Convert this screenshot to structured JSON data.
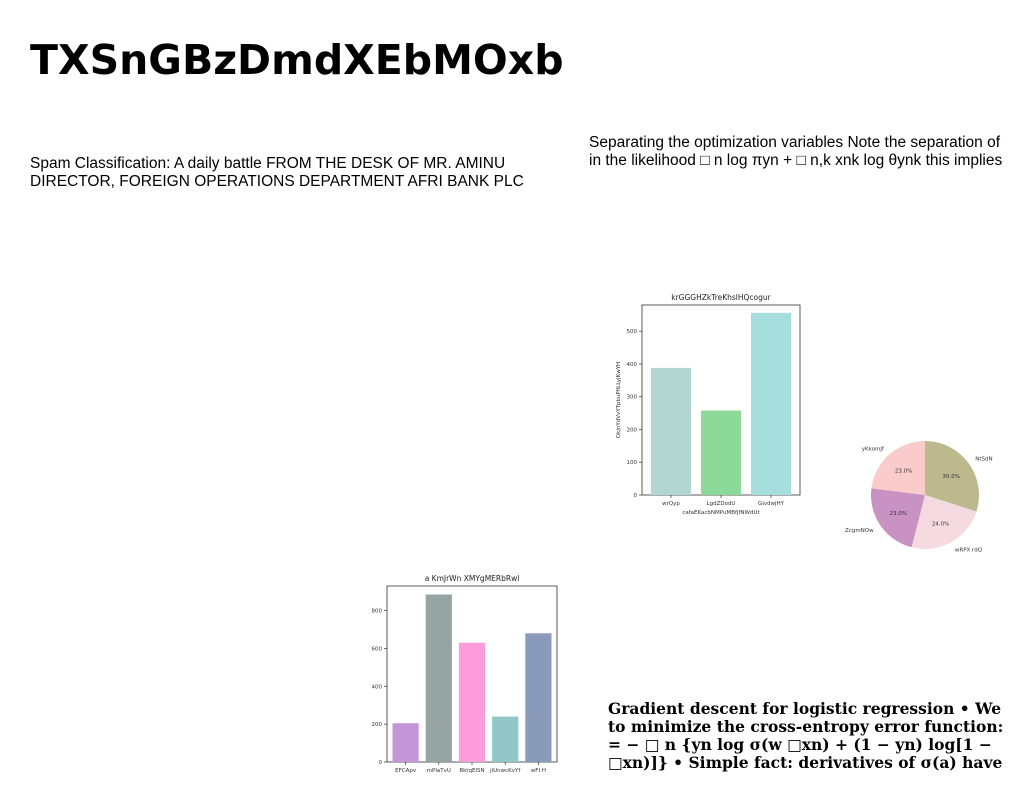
{
  "title": "TXSnGBzDmdXEbMOxb",
  "left_paragraph": {
    "lines": [
      "Spam Classification: A daily battle FROM THE DESK OF MR. AMINU",
      "DIRECTOR, FOREIGN OPERATIONS DEPARTMENT AFRI BANK PLC"
    ]
  },
  "right_paragraph": {
    "lines": [
      "Separating the optimization variables Note the separation of",
      "in the likelihood □ n log πyn + □ n,k xnk log θynk this implies"
    ]
  },
  "bottom_paragraph": {
    "lines": [
      "Gradient descent for logistic regression • We",
      "to minimize the cross-entropy error function:",
      "= − □ n {yn log σ(w □xn) + (1 − yn) log[1 −",
      "□xn)]} • Simple fact: derivatives of σ(a) have"
    ]
  },
  "chart_data": [
    {
      "type": "bar",
      "title": "krGGGHZkTreKhslHQcogur",
      "xlabel": "cafaEKacbNMPuMBfjfNWdUt",
      "ylabel": "OkjnYdVvYTpbuPfiLLyjKwYH",
      "categories": [
        "wrQyp",
        "LgdZDodU",
        "GivdwjHY"
      ],
      "values": [
        388,
        258,
        556
      ],
      "colors": [
        "#b3d6d3",
        "#8dd99a",
        "#a6dedd"
      ],
      "ylim": [
        0,
        580
      ],
      "yticks": [
        0,
        100,
        200,
        300,
        400,
        500
      ]
    },
    {
      "type": "pie",
      "labels": [
        "NtSdN",
        "wRPX rdQ",
        "ZcgmNOw",
        "yKkomJf"
      ],
      "values": [
        30.0,
        24.0,
        23.0,
        23.0
      ],
      "pct_labels": [
        "30.0%",
        "24.0%",
        "23.0%",
        "23.0%"
      ],
      "colors": [
        "#bdb98f",
        "#f5dbe0",
        "#c893c2",
        "#f9cbcb"
      ]
    },
    {
      "type": "bar",
      "title": "a KmJrWn XMYgMERbRwl",
      "categories": [
        "EFCApv",
        "mPIaTvU",
        "BktqEISN",
        "jiUnwcKvYf",
        "wFI H"
      ],
      "values": [
        205,
        885,
        630,
        240,
        680
      ],
      "colors": [
        "#c495d8",
        "#95a4a3",
        "#fb9bd9",
        "#92c7c8",
        "#8a9aba"
      ],
      "ylim": [
        0,
        930
      ],
      "yticks": [
        0,
        200,
        400,
        600,
        800
      ]
    }
  ]
}
